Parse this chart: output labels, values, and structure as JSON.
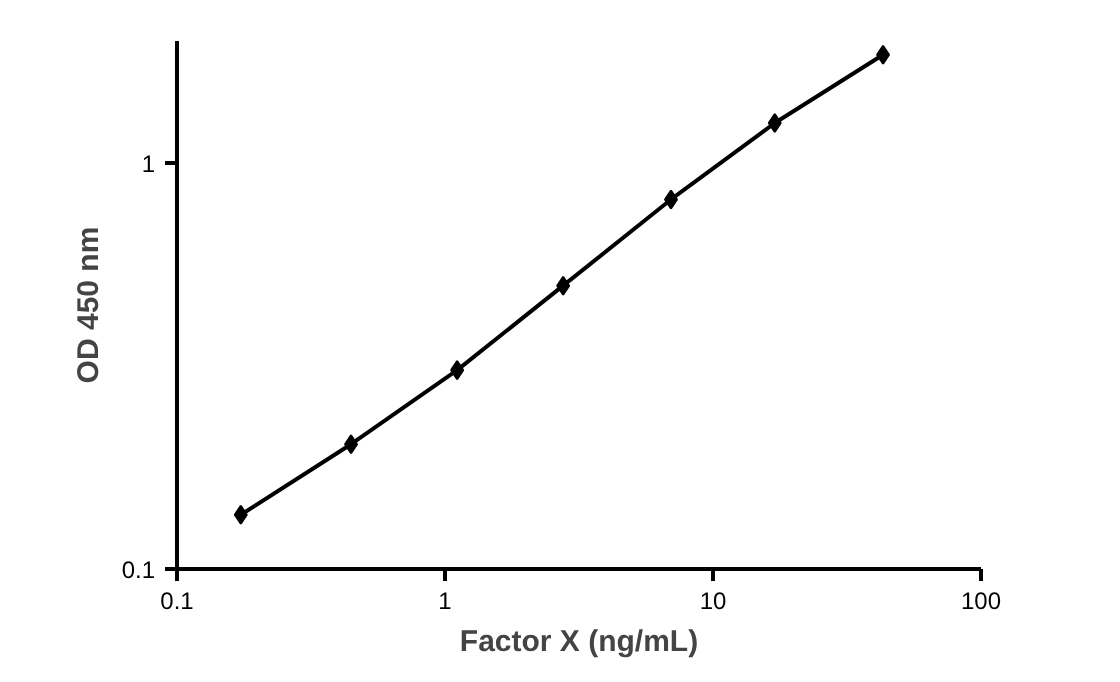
{
  "chart_data": {
    "type": "line",
    "xlabel": "Factor X (ng/mL)",
    "ylabel": "OD 450 nm",
    "log": "xy",
    "grid": false,
    "marker": "diamond",
    "line_style": "solid",
    "xlim": [
      0.1,
      100
    ],
    "ylim": [
      0.1,
      2
    ],
    "xticks": [
      0.1,
      1,
      10,
      100
    ],
    "yticks": [
      0.1,
      1
    ],
    "x": [
      0.173,
      0.446,
      1.11,
      2.76,
      6.97,
      17.0,
      43.1
    ],
    "series": [
      {
        "color": "#000000",
        "values": [
          0.136,
          0.203,
          0.309,
          0.499,
          0.814,
          1.256,
          1.85
        ]
      }
    ]
  }
}
